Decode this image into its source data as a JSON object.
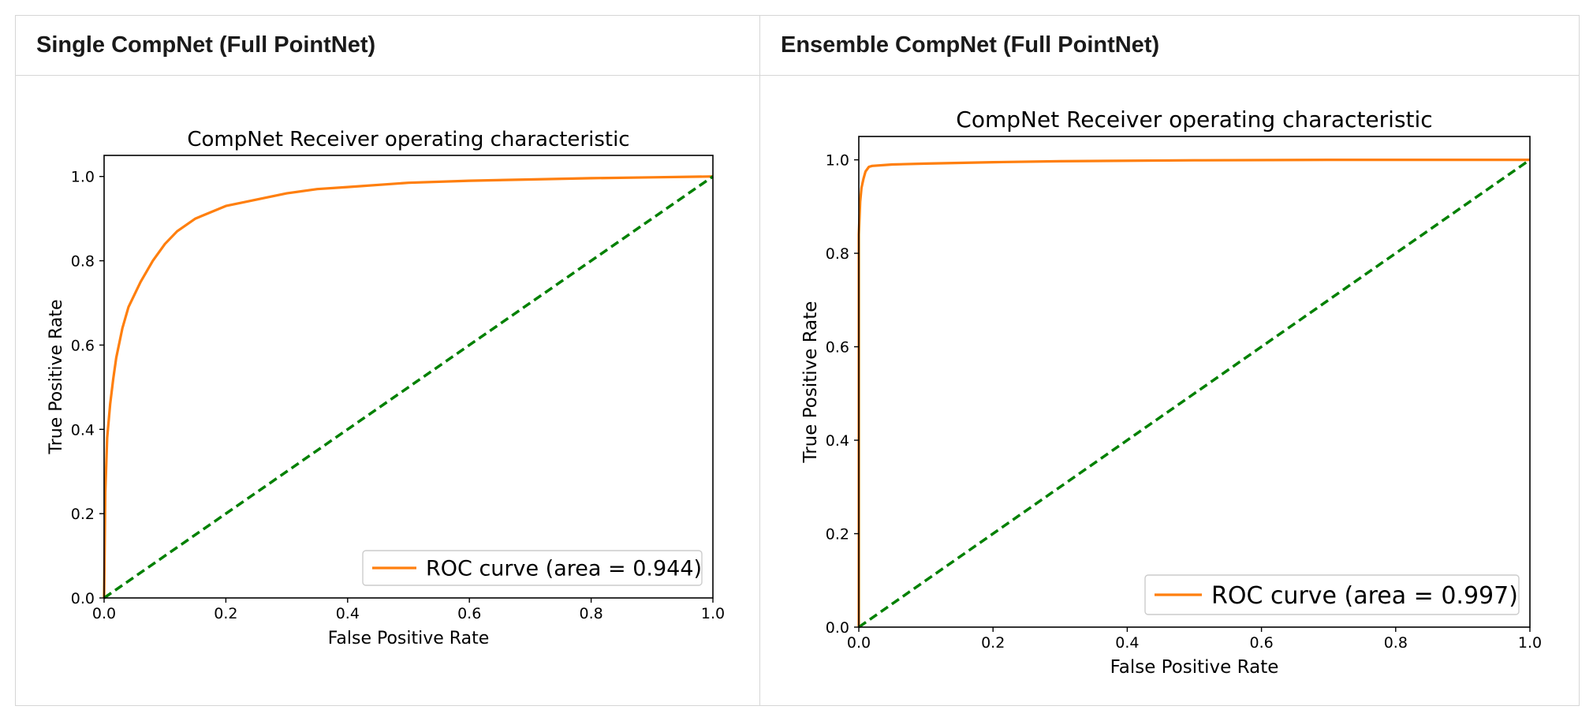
{
  "panels": [
    {
      "header": "Single CompNet (Full PointNet)"
    },
    {
      "header": "Ensemble CompNet (Full PointNet)"
    }
  ],
  "colors": {
    "roc": "#ff7f0e",
    "diagonal": "#008000",
    "axes": "#000000",
    "border": "#d6d6d6"
  },
  "chart_data": [
    {
      "type": "line",
      "title": "CompNet Receiver operating characteristic",
      "xlabel": "False Positive Rate",
      "ylabel": "True Positive Rate",
      "xlim": [
        0,
        1
      ],
      "ylim": [
        0,
        1.05
      ],
      "xticks": [
        0.0,
        0.2,
        0.4,
        0.6,
        0.8,
        1.0
      ],
      "yticks": [
        0.0,
        0.2,
        0.4,
        0.6,
        0.8,
        1.0
      ],
      "tick_labels": [
        "0.0",
        "0.2",
        "0.4",
        "0.6",
        "0.8",
        "1.0"
      ],
      "grid": false,
      "legend": "lower-right",
      "series": [
        {
          "name": "ROC curve (area = 0.944)",
          "color": "#ff7f0e",
          "style": "solid",
          "x": [
            0,
            0.002,
            0.005,
            0.01,
            0.015,
            0.02,
            0.03,
            0.04,
            0.05,
            0.06,
            0.08,
            0.1,
            0.12,
            0.15,
            0.2,
            0.25,
            0.3,
            0.35,
            0.4,
            0.5,
            0.6,
            0.7,
            0.8,
            0.9,
            1.0
          ],
          "y": [
            0,
            0.25,
            0.38,
            0.46,
            0.52,
            0.57,
            0.64,
            0.69,
            0.72,
            0.75,
            0.8,
            0.84,
            0.87,
            0.9,
            0.93,
            0.945,
            0.96,
            0.97,
            0.975,
            0.985,
            0.99,
            0.993,
            0.996,
            0.998,
            1.0
          ]
        },
        {
          "color": "#008000",
          "style": "dashed",
          "x": [
            0,
            1
          ],
          "y": [
            0,
            1
          ]
        }
      ]
    },
    {
      "type": "line",
      "title": "CompNet Receiver operating characteristic",
      "xlabel": "False Positive Rate",
      "ylabel": "True Positive Rate",
      "xlim": [
        0,
        1
      ],
      "ylim": [
        0,
        1.05
      ],
      "xticks": [
        0.0,
        0.2,
        0.4,
        0.6,
        0.8,
        1.0
      ],
      "yticks": [
        0.0,
        0.2,
        0.4,
        0.6,
        0.8,
        1.0
      ],
      "tick_labels": [
        "0.0",
        "0.2",
        "0.4",
        "0.6",
        "0.8",
        "1.0"
      ],
      "grid": false,
      "legend": "lower-right",
      "series": [
        {
          "name": "ROC curve (area = 0.997)",
          "color": "#ff7f0e",
          "style": "solid",
          "x": [
            0,
            0,
            0.002,
            0.004,
            0.007,
            0.01,
            0.015,
            0.02,
            0.05,
            0.1,
            0.2,
            0.3,
            0.5,
            0.7,
            1.0
          ],
          "y": [
            0,
            0.84,
            0.91,
            0.94,
            0.96,
            0.975,
            0.985,
            0.987,
            0.99,
            0.992,
            0.995,
            0.997,
            0.999,
            1.0,
            1.0
          ]
        },
        {
          "color": "#008000",
          "style": "dashed",
          "x": [
            0,
            1
          ],
          "y": [
            0,
            1
          ]
        }
      ]
    }
  ]
}
